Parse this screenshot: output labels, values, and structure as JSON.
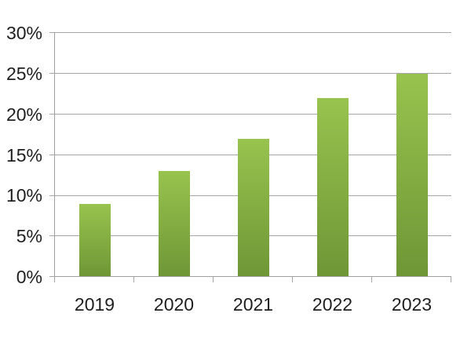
{
  "chart_data": {
    "type": "bar",
    "title": "",
    "xlabel": "",
    "ylabel": "",
    "categories": [
      "2019",
      "2020",
      "2021",
      "2022",
      "2023"
    ],
    "values": [
      9,
      13,
      17,
      22,
      25
    ],
    "ylim": [
      0,
      30
    ],
    "ytick_step": 5,
    "ytick_labels": [
      "0%",
      "5%",
      "10%",
      "15%",
      "20%",
      "25%",
      "30%"
    ],
    "grid": true,
    "legend": false,
    "colors": {
      "bar_gradient_top": "#98C34E",
      "bar_gradient_bottom": "#6F9636",
      "gridline": "#A6A6A6",
      "axis": "#A0A0A0",
      "label_text": "#1F1F1F",
      "background": "#FFFFFF"
    }
  }
}
